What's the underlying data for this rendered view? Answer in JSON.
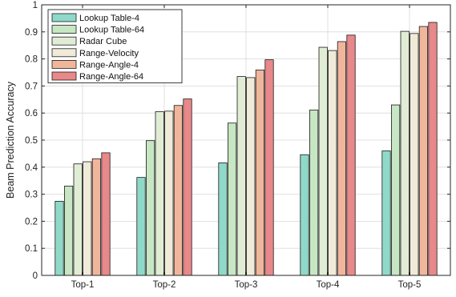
{
  "chart_data": {
    "type": "bar",
    "title": "",
    "xlabel": "",
    "ylabel": "Beam Prediction Accuracy",
    "ylim": [
      0,
      1
    ],
    "yticks": [
      0,
      0.1,
      0.2,
      0.3,
      0.4,
      0.5,
      0.6,
      0.7,
      0.8,
      0.9,
      1
    ],
    "ytick_labels": [
      "0",
      "0.1",
      "0.2",
      "0.3",
      "0.4",
      "0.5",
      "0.6",
      "0.7",
      "0.8",
      "0.9",
      "1"
    ],
    "grid": true,
    "legend_position": "top-left",
    "categories": [
      "Top-1",
      "Top-2",
      "Top-3",
      "Top-4",
      "Top-5"
    ],
    "series": [
      {
        "name": "Lookup Table-4",
        "color": "#8fd9c9",
        "values": [
          0.274,
          0.362,
          0.416,
          0.446,
          0.46
        ]
      },
      {
        "name": "Lookup Table-64",
        "color": "#c7e6c3",
        "values": [
          0.33,
          0.498,
          0.563,
          0.611,
          0.63
        ]
      },
      {
        "name": "Radar Cube",
        "color": "#e1ecd4",
        "values": [
          0.412,
          0.605,
          0.735,
          0.843,
          0.902
        ]
      },
      {
        "name": "Range-Velocity",
        "color": "#f0ead9",
        "values": [
          0.42,
          0.607,
          0.731,
          0.831,
          0.894
        ]
      },
      {
        "name": "Range-Angle-4",
        "color": "#f0b69c",
        "values": [
          0.431,
          0.628,
          0.759,
          0.864,
          0.92
        ]
      },
      {
        "name": "Range-Angle-64",
        "color": "#e8888a",
        "values": [
          0.453,
          0.652,
          0.797,
          0.888,
          0.935
        ]
      }
    ]
  }
}
